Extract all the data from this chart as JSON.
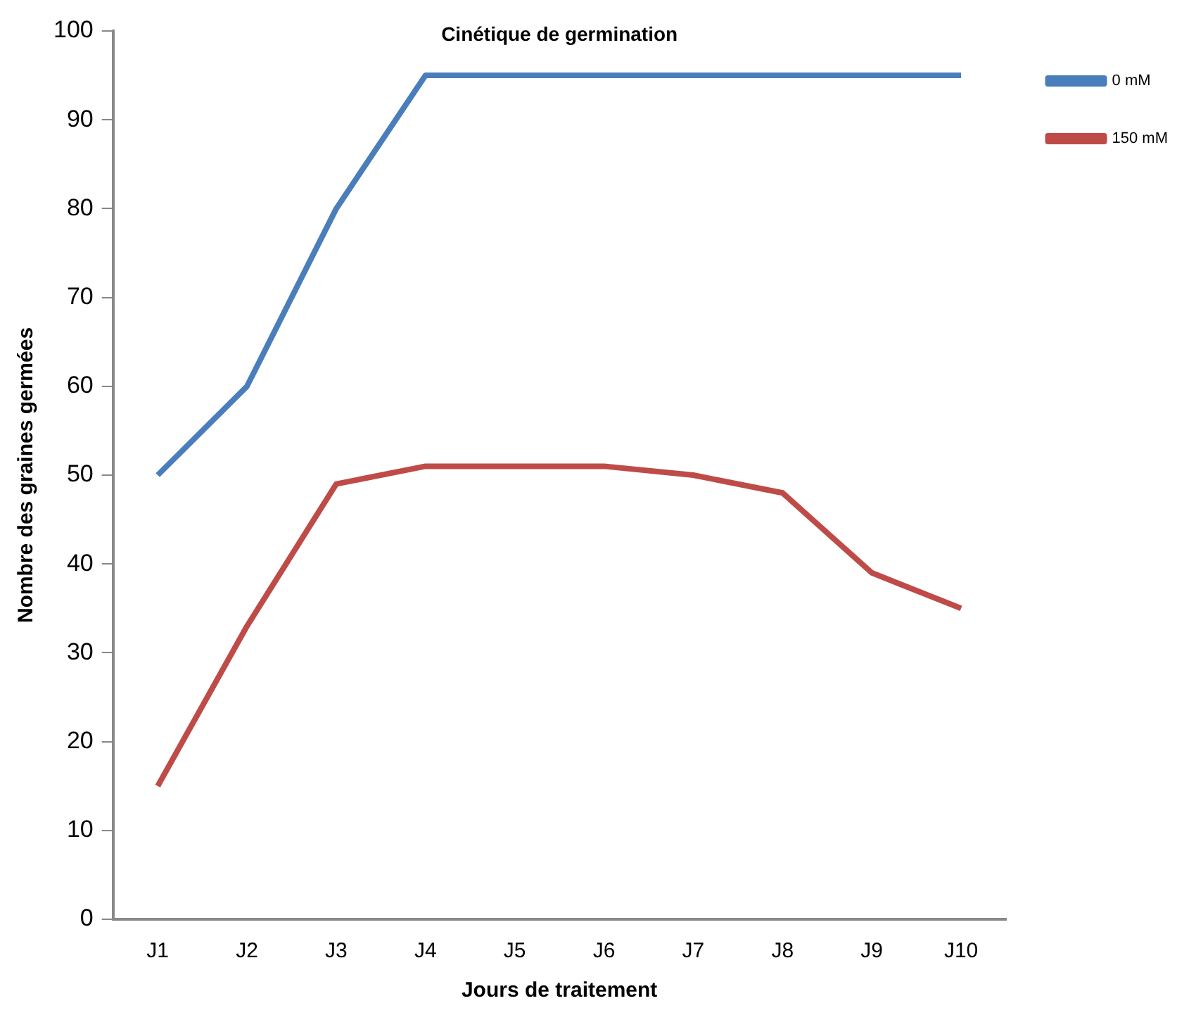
{
  "chart_data": {
    "type": "line",
    "title": "Cinétique de germination",
    "xlabel": "Jours de traitement",
    "ylabel": "Nombre des graines germées",
    "categories": [
      "J1",
      "J2",
      "J3",
      "J4",
      "J5",
      "J6",
      "J7",
      "J8",
      "J9",
      "J10"
    ],
    "series": [
      {
        "name": "0 mM",
        "color": "#4a7ebb",
        "values": [
          50,
          60,
          80,
          95,
          95,
          95,
          95,
          95,
          95,
          95
        ]
      },
      {
        "name": "150 mM",
        "color": "#be4b48",
        "values": [
          15,
          33,
          49,
          51,
          51,
          51,
          50,
          48,
          39,
          35
        ]
      }
    ],
    "ylim": [
      0,
      100
    ],
    "yticks": [
      0,
      10,
      20,
      30,
      40,
      50,
      60,
      70,
      80,
      90,
      100
    ],
    "grid": false,
    "legend": "right",
    "marker": "none",
    "line_style": "solid"
  }
}
